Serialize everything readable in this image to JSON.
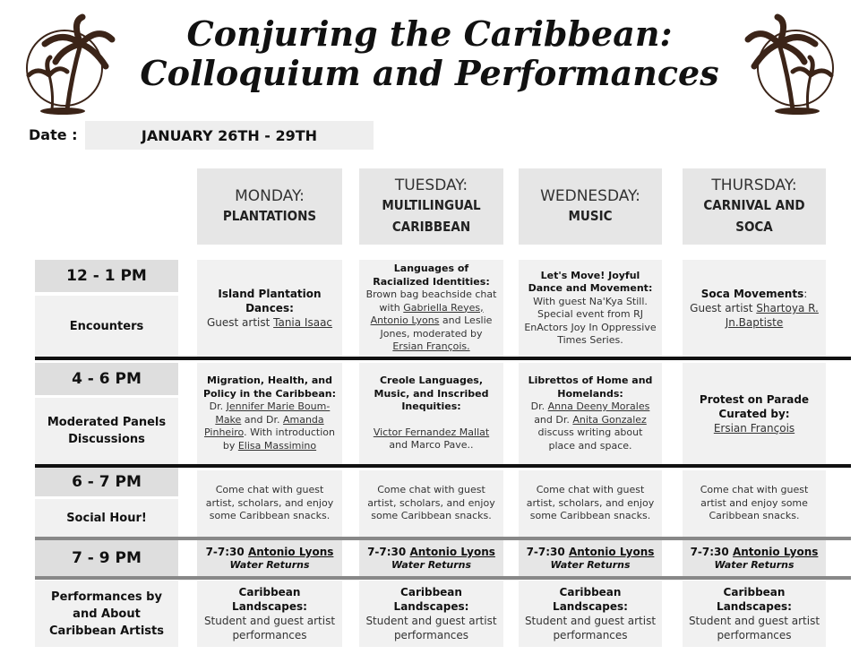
{
  "title": {
    "line1": "Conjuring the Caribbean:",
    "line2": "Colloquium and Performances"
  },
  "date": {
    "label": "Date :",
    "value": "JANUARY 26TH - 29TH"
  },
  "days": [
    {
      "day": "MONDAY:",
      "theme1": "PLANTATIONS",
      "theme2": ""
    },
    {
      "day": "TUESDAY:",
      "theme1": "MULTILINGUAL",
      "theme2": "CARIBBEAN"
    },
    {
      "day": "WEDNESDAY:",
      "theme1": "MUSIC",
      "theme2": ""
    },
    {
      "day": "THURSDAY:",
      "theme1": "CARNIVAL AND",
      "theme2": "SOCA"
    }
  ],
  "rows": {
    "r1": {
      "time": "12 - 1 PM",
      "label": "Encounters"
    },
    "r2": {
      "time": "4 - 6 PM",
      "label": "Moderated Panels Discussions"
    },
    "r3": {
      "time": "6 - 7 PM",
      "label": "Social Hour!"
    },
    "r4": {
      "time": "7 - 9 PM"
    },
    "r5": {
      "label": "Performances by and About Caribbean Artists"
    }
  },
  "cells": {
    "mon1": {
      "title": "Island Plantation Dances:",
      "pre": "Guest artist ",
      "link": "Tania Isaac"
    },
    "tue1": {
      "title": "Languages of Racialized Identities:",
      "t1": "Brown bag beachside chat with ",
      "l1": "Gabriella Reyes,",
      "l2": "Antonio Lyons",
      "t2": " and Leslie Jones, moderated by ",
      "l3": "Ersian François."
    },
    "wed1": {
      "title": "Let's Move! Joyful Dance and Movement:",
      "text": "With guest Na'Kya Still. Special event from RJ EnActors Joy In Oppressive Times Series."
    },
    "thu1": {
      "title": "Soca Movements",
      "colon": ":",
      "pre": "Guest artist ",
      "link": "Shartoya R. Jn.Baptiste"
    },
    "mon2": {
      "title": "Migration, Health, and Policy in the Caribbean:",
      "t1": "Dr. ",
      "l1": "Jennifer Marie Boum-Make",
      "t2": " and Dr. ",
      "l2": "Amanda Pinheiro",
      "t3": ". With introduction by ",
      "l3": "Elisa Massimino"
    },
    "tue2": {
      "title": "Creole Languages, Music, and Inscribed Inequities:",
      "l1": "Victor Fernandez Mallat",
      "t1": "and Marco Pave.."
    },
    "wed2": {
      "title": "Librettos of Home and Homelands:",
      "t1": "Dr. ",
      "l1": "Anna Deeny Morales",
      "t2": " and Dr. ",
      "l2": "Anita Gonzalez",
      "t3": " discuss writing about place and space."
    },
    "thu2": {
      "title": "Protest on Parade Curated by:",
      "link": "Ersian François"
    },
    "social": "Come chat with guest artist, scholars, and enjoy some Caribbean snacks.",
    "social_thu": "Come chat with guest artist and enjoy some Caribbean snacks.",
    "perf_time": "7-7:30 ",
    "perf_link": "Antonio Lyons",
    "perf_title": "Water Returns",
    "land_title": "Caribbean Landscapes:",
    "land_text": "Student and guest artist performances"
  }
}
